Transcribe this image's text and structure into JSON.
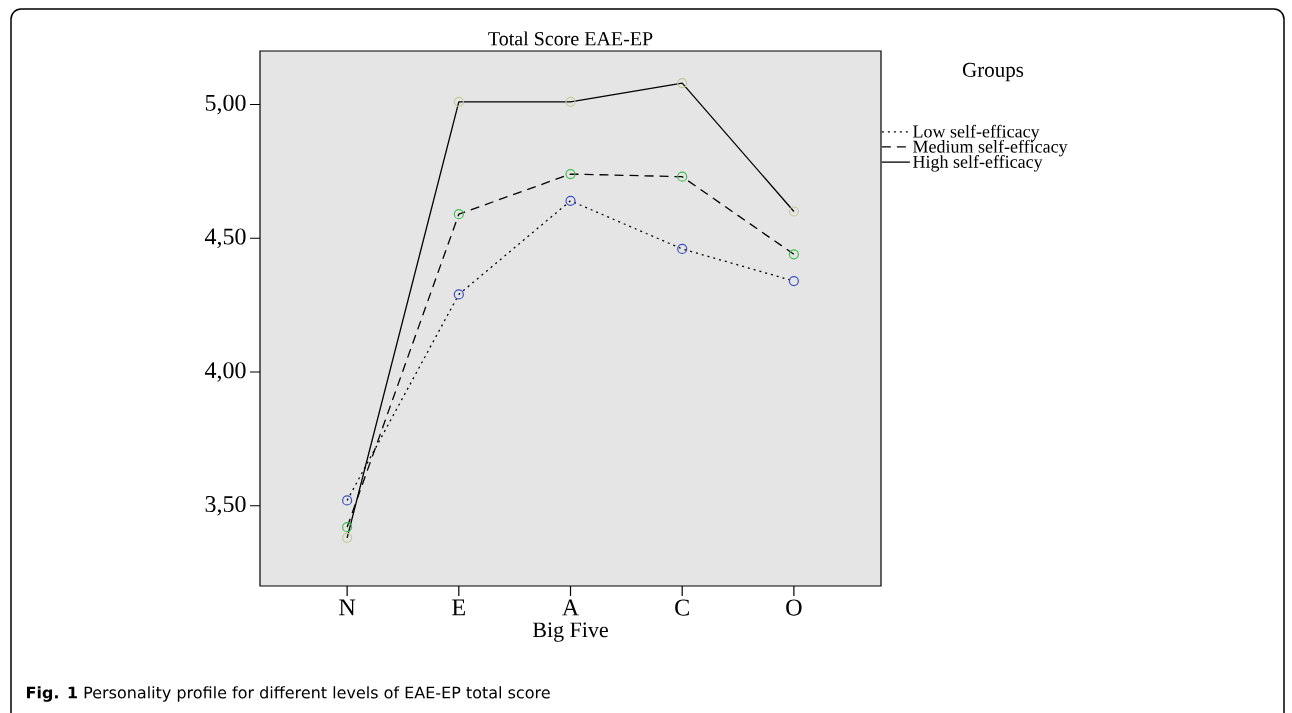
{
  "chart_data": {
    "type": "line",
    "title": "Total Score EAE-EP",
    "xlabel": "Big Five",
    "legend_title": "Groups",
    "categories": [
      "N",
      "E",
      "A",
      "C",
      "O"
    ],
    "series": [
      {
        "name": "Low self-efficacy",
        "color": "#000000",
        "line_style": "dotted",
        "colors": [
          "#3a4fc4",
          "#3a4fc4",
          "#3a4fc4",
          "#3a4fc4",
          "#3a4fc4"
        ],
        "values": [
          3.52,
          4.29,
          4.64,
          4.46,
          4.34
        ]
      },
      {
        "name": "Medium self-efficacy",
        "color": "#000000",
        "line_style": "dashed",
        "colors": [
          "#3fbf4f",
          "#3fbf4f",
          "#3fbf4f",
          "#3fbf4f",
          "#3fbf4f"
        ],
        "values": [
          3.42,
          4.59,
          4.74,
          4.73,
          4.44
        ]
      },
      {
        "name": "High self-efficacy",
        "color": "#000000",
        "line_style": "solid",
        "colors": [
          "#c8c89a",
          "#c8c89a",
          "#c8c89a",
          "#c8c89a",
          "#c8c89a"
        ],
        "values": [
          3.38,
          5.01,
          5.01,
          5.08,
          4.6
        ]
      }
    ],
    "ylim": [
      3.2,
      5.2
    ],
    "yticks": [
      {
        "value": 3.5,
        "label": "3,50"
      },
      {
        "value": 4.0,
        "label": "4,00"
      },
      {
        "value": 4.5,
        "label": "4,50"
      },
      {
        "value": 5.0,
        "label": "5,00"
      }
    ],
    "marker": "circle",
    "legend": "right",
    "grid": false,
    "annotations": [
      "**Fig. 1** Personality profile for different levels of EAE-EP total score"
    ]
  }
}
